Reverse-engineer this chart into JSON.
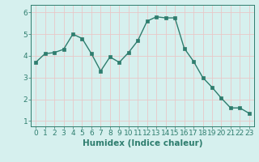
{
  "x": [
    0,
    1,
    2,
    3,
    4,
    5,
    6,
    7,
    8,
    9,
    10,
    11,
    12,
    13,
    14,
    15,
    16,
    17,
    18,
    19,
    20,
    21,
    22,
    23
  ],
  "y": [
    3.7,
    4.1,
    4.15,
    4.3,
    5.0,
    4.8,
    4.1,
    3.3,
    3.95,
    3.7,
    4.15,
    4.7,
    5.6,
    5.8,
    5.75,
    5.75,
    4.35,
    3.75,
    3.0,
    2.55,
    2.05,
    1.6,
    1.6,
    1.35
  ],
  "line_color": "#2e7d6e",
  "marker": "s",
  "marker_size": 2.5,
  "bg_color": "#d6f0ee",
  "grid_color": "#b0d8d4",
  "xlabel": "Humidex (Indice chaleur)",
  "xlim": [
    -0.5,
    23.5
  ],
  "ylim": [
    0.75,
    6.35
  ],
  "yticks": [
    1,
    2,
    3,
    4,
    5,
    6
  ],
  "xticks": [
    0,
    1,
    2,
    3,
    4,
    5,
    6,
    7,
    8,
    9,
    10,
    11,
    12,
    13,
    14,
    15,
    16,
    17,
    18,
    19,
    20,
    21,
    22,
    23
  ],
  "xtick_labels": [
    "0",
    "1",
    "2",
    "3",
    "4",
    "5",
    "6",
    "7",
    "8",
    "9",
    "10",
    "11",
    "12",
    "13",
    "14",
    "15",
    "16",
    "17",
    "18",
    "19",
    "20",
    "21",
    "22",
    "23"
  ],
  "tick_color": "#2e7d6e",
  "label_fontsize": 7.5,
  "tick_fontsize": 6.5
}
